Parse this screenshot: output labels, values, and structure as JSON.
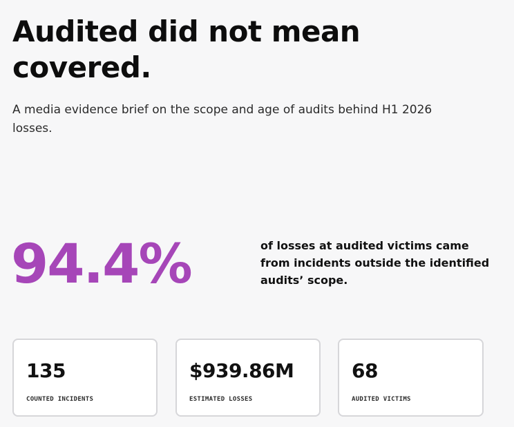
{
  "header": {
    "title": "Audited did not mean covered.",
    "subtitle": "A media evidence brief on the scope and age of audits behind H1 2026 losses."
  },
  "headline_stat": {
    "value": "94.4%",
    "caption": "of losses at audited victims came from incidents outside the identified audits’ scope.",
    "color": "#a646b8"
  },
  "cards": [
    {
      "value": "135",
      "label": "COUNTED INCIDENTS"
    },
    {
      "value": "$939.86M",
      "label": "ESTIMATED LOSSES"
    },
    {
      "value": "68",
      "label": "AUDITED VICTIMS"
    }
  ]
}
